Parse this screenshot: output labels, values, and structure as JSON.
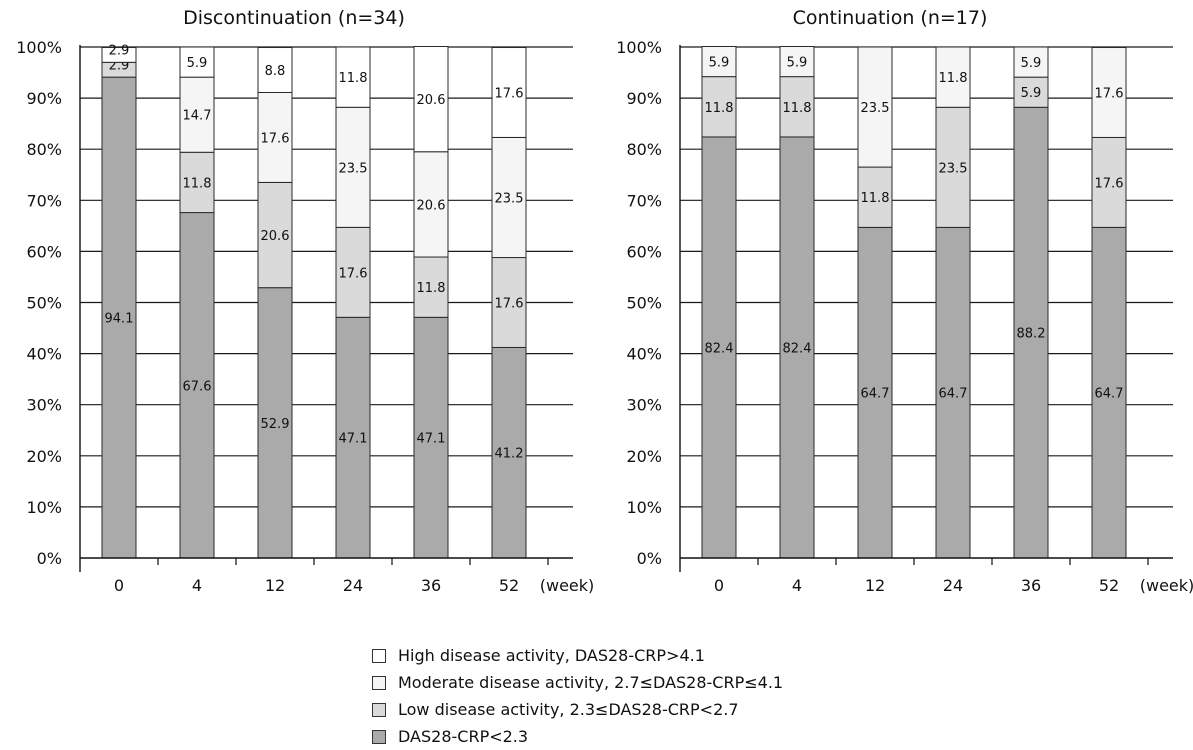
{
  "chart_data": [
    {
      "type": "bar",
      "stacked": true,
      "title": "Discontinuation (n=34)",
      "categories": [
        "0",
        "4",
        "12",
        "24",
        "36",
        "52"
      ],
      "x_unit_label": "(week)",
      "y_tick_labels": [
        "0%",
        "10%",
        "20%",
        "30%",
        "40%",
        "50%",
        "60%",
        "70%",
        "80%",
        "90%",
        "100%"
      ],
      "ylim": [
        0,
        100
      ],
      "grid": true,
      "series": [
        {
          "name": "DAS28-CRP<2.3",
          "color": "#aaaaaa",
          "values": [
            94.1,
            67.6,
            52.9,
            47.1,
            47.1,
            41.2
          ],
          "labels": [
            "94.1",
            "67.6",
            "52.9",
            "47.1",
            "47.1",
            "41.2"
          ]
        },
        {
          "name": "Low disease activity, 2.3≤DAS28-CRP<2.7",
          "color": "#dadada",
          "values": [
            2.9,
            11.8,
            20.6,
            17.6,
            11.8,
            17.6
          ],
          "labels": [
            "2.9",
            "11.8",
            "20.6",
            "17.6",
            "11.8",
            "17.6"
          ]
        },
        {
          "name": "Moderate disease activity, 2.7≤DAS28-CRP≤4.1",
          "color": "#f5f5f5",
          "values": [
            0,
            14.7,
            17.6,
            23.5,
            20.6,
            23.5
          ],
          "labels": [
            "",
            "14.7",
            "17.6",
            "23.5",
            "20.6",
            "23.5"
          ]
        },
        {
          "name": "High disease activity, DAS28-CRP>4.1",
          "color": "#ffffff",
          "values": [
            2.9,
            5.9,
            8.8,
            11.8,
            20.6,
            17.6
          ],
          "labels": [
            "2.9",
            "5.9",
            "8.8",
            "11.8",
            "20.6",
            "17.6"
          ]
        }
      ]
    },
    {
      "type": "bar",
      "stacked": true,
      "title": "Continuation (n=17)",
      "categories": [
        "0",
        "4",
        "12",
        "24",
        "36",
        "52"
      ],
      "x_unit_label": "(week)",
      "y_tick_labels": [
        "0%",
        "10%",
        "20%",
        "30%",
        "40%",
        "50%",
        "60%",
        "70%",
        "80%",
        "90%",
        "100%"
      ],
      "ylim": [
        0,
        100
      ],
      "grid": true,
      "series": [
        {
          "name": "DAS28-CRP<2.3",
          "color": "#aaaaaa",
          "values": [
            82.4,
            82.4,
            64.7,
            64.7,
            88.2,
            64.7
          ],
          "labels": [
            "82.4",
            "82.4",
            "64.7",
            "64.7",
            "88.2",
            "64.7"
          ]
        },
        {
          "name": "Low disease activity, 2.3≤DAS28-CRP<2.7",
          "color": "#dadada",
          "values": [
            11.8,
            11.8,
            11.8,
            23.5,
            5.9,
            17.6
          ],
          "labels": [
            "11.8",
            "11.8",
            "11.8",
            "23.5",
            "5.9",
            "17.6"
          ]
        },
        {
          "name": "Moderate disease activity, 2.7≤DAS28-CRP≤4.1",
          "color": "#f5f5f5",
          "values": [
            5.9,
            5.9,
            23.5,
            11.8,
            5.9,
            17.6
          ],
          "labels": [
            "5.9",
            "5.9",
            "23.5",
            "11.8",
            "5.9",
            "17.6"
          ]
        },
        {
          "name": "High disease activity, DAS28-CRP>4.1",
          "color": "#ffffff",
          "values": [
            0,
            0,
            0,
            0,
            0,
            0
          ],
          "labels": [
            "",
            "",
            "",
            "",
            "",
            ""
          ]
        }
      ]
    }
  ],
  "legend": {
    "placement": "bottom-center",
    "items": [
      {
        "label": "High disease activity, DAS28-CRP>4.1",
        "color": "#ffffff"
      },
      {
        "label": "Moderate disease activity, 2.7≤DAS28-CRP≤4.1",
        "color": "#f5f5f5"
      },
      {
        "label": "Low disease activity, 2.3≤DAS28-CRP<2.7",
        "color": "#dadada"
      },
      {
        "label": "DAS28-CRP<2.3",
        "color": "#aaaaaa"
      }
    ]
  }
}
